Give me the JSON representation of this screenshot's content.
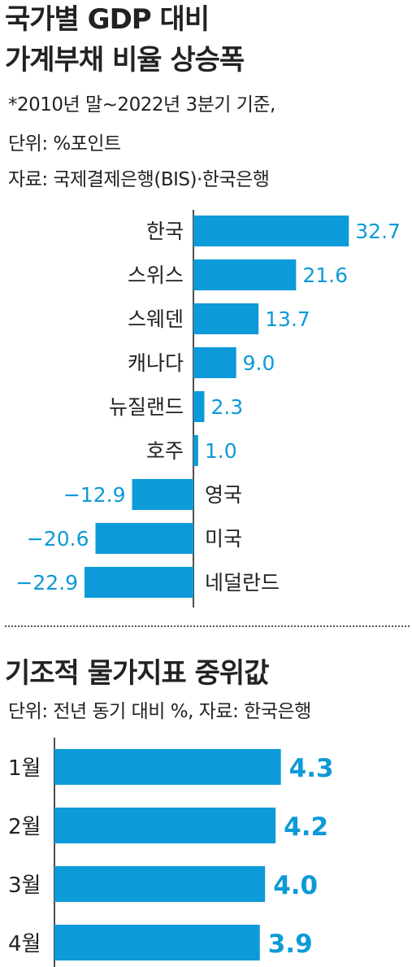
{
  "colors": {
    "bar": "#0d9ad8",
    "value_text": "#0d9ad8",
    "text": "#222222",
    "axis": "#222222"
  },
  "chart_data": [
    {
      "type": "bar",
      "orientation": "horizontal",
      "title_lines": [
        "국가별 GDP 대비",
        "가계부채 비율 상승폭"
      ],
      "notes": [
        "*2010년 말~2022년 3분기 기준,",
        "단위: %포인트",
        "자료: 국제결제은행(BIS)·한국은행"
      ],
      "categories": [
        "한국",
        "스위스",
        "스웨덴",
        "캐나다",
        "뉴질랜드",
        "호주",
        "영국",
        "미국",
        "네덜란드"
      ],
      "values": [
        32.7,
        21.6,
        13.7,
        9.0,
        2.3,
        1.0,
        -12.9,
        -20.6,
        -22.9
      ],
      "value_labels": [
        "32.7",
        "21.6",
        "13.7",
        "9.0",
        "2.3",
        "1.0",
        "−12.9",
        "−20.6",
        "−22.9"
      ],
      "grid": false
    },
    {
      "type": "bar",
      "orientation": "horizontal",
      "title": "기조적 물가지표 중위값",
      "note": "단위: 전년 동기 대비 %, 자료: 한국은행",
      "categories": [
        "1월",
        "2월",
        "3월",
        "4월"
      ],
      "values": [
        4.3,
        4.2,
        4.0,
        3.9
      ],
      "value_labels": [
        "4.3",
        "4.2",
        "4.0",
        "3.9"
      ],
      "grid": false
    }
  ]
}
